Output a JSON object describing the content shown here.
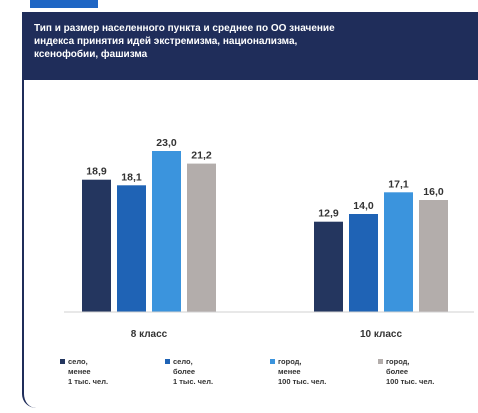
{
  "title_lines": [
    "Тип и размер населенного пункта и среднее по ОО значение",
    "индекса принятия идей экстремизма, национализма,",
    "ксенофобии, фашизма"
  ],
  "colors": {
    "header": "#1f2d5a",
    "accent": "#1f66c4"
  },
  "chart_data": {
    "type": "bar",
    "title": "Тип и размер населенного пункта и среднее по ОО значение индекса принятия идей экстремизма, национализма, ксенофобии, фашизма",
    "categories": [
      "8 класс",
      "10 класс"
    ],
    "ylim": [
      0,
      25
    ],
    "grid": false,
    "legend_position": "bottom",
    "series": [
      {
        "name": "село, менее 1 тыс. чел.",
        "color": "#24365f",
        "values": [
          18.9,
          12.9
        ],
        "labels": [
          "18,9",
          "12,9"
        ]
      },
      {
        "name": "село, более 1 тыс. чел.",
        "color": "#1f63b5",
        "values": [
          18.1,
          14.0
        ],
        "labels": [
          "18,1",
          "14,0"
        ]
      },
      {
        "name": "город, менее 100 тыс. чел.",
        "color": "#3b94dd",
        "values": [
          23.0,
          17.1
        ],
        "labels": [
          "23,0",
          "17,1"
        ]
      },
      {
        "name": "город, более 100 тыс. чел.",
        "color": "#b3adab",
        "values": [
          21.2,
          16.0
        ],
        "labels": [
          "21,2",
          "16,0"
        ]
      }
    ]
  },
  "legend": [
    {
      "lines": [
        "село,",
        "менее",
        "1 тыс. чел."
      ]
    },
    {
      "lines": [
        "село,",
        "более",
        "1 тыс. чел."
      ]
    },
    {
      "lines": [
        "город,",
        "менее",
        "100 тыс. чел."
      ]
    },
    {
      "lines": [
        "город,",
        "более",
        "100 тыс. чел."
      ]
    }
  ]
}
